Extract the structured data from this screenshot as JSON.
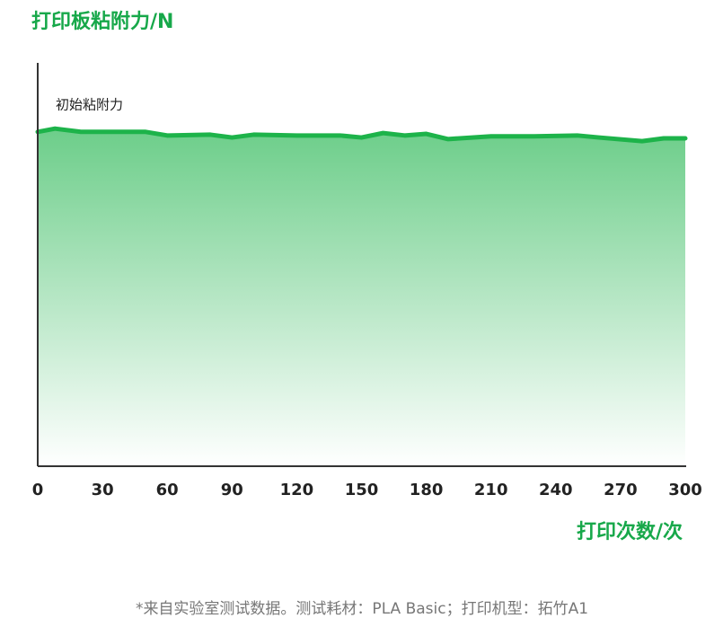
{
  "chart_data": {
    "type": "area",
    "title": "打印板粘附力/N",
    "annotation": "初始粘附力",
    "x_label": "打印次数/次",
    "footnote": "*来自实验室测试数据。测试耗材：PLA Basic；打印机型：拓竹A1",
    "x": [
      0,
      8,
      20,
      40,
      50,
      60,
      80,
      90,
      100,
      120,
      140,
      150,
      160,
      170,
      180,
      190,
      210,
      230,
      250,
      260,
      280,
      290,
      300
    ],
    "series": [
      {
        "color": "#1db34a",
        "values": [
          82.9,
          83.7,
          82.9,
          82.9,
          82.9,
          82.0,
          82.2,
          81.5,
          82.2,
          82.0,
          82.0,
          81.5,
          82.6,
          82.0,
          82.4,
          81.1,
          81.8,
          81.8,
          82.0,
          81.5,
          80.6,
          81.3,
          81.3
        ]
      }
    ],
    "xlim": [
      0,
      300
    ],
    "xticks": [
      0,
      30,
      60,
      90,
      120,
      150,
      180,
      210,
      240,
      270,
      300
    ],
    "ylim": [
      0,
      100
    ]
  }
}
